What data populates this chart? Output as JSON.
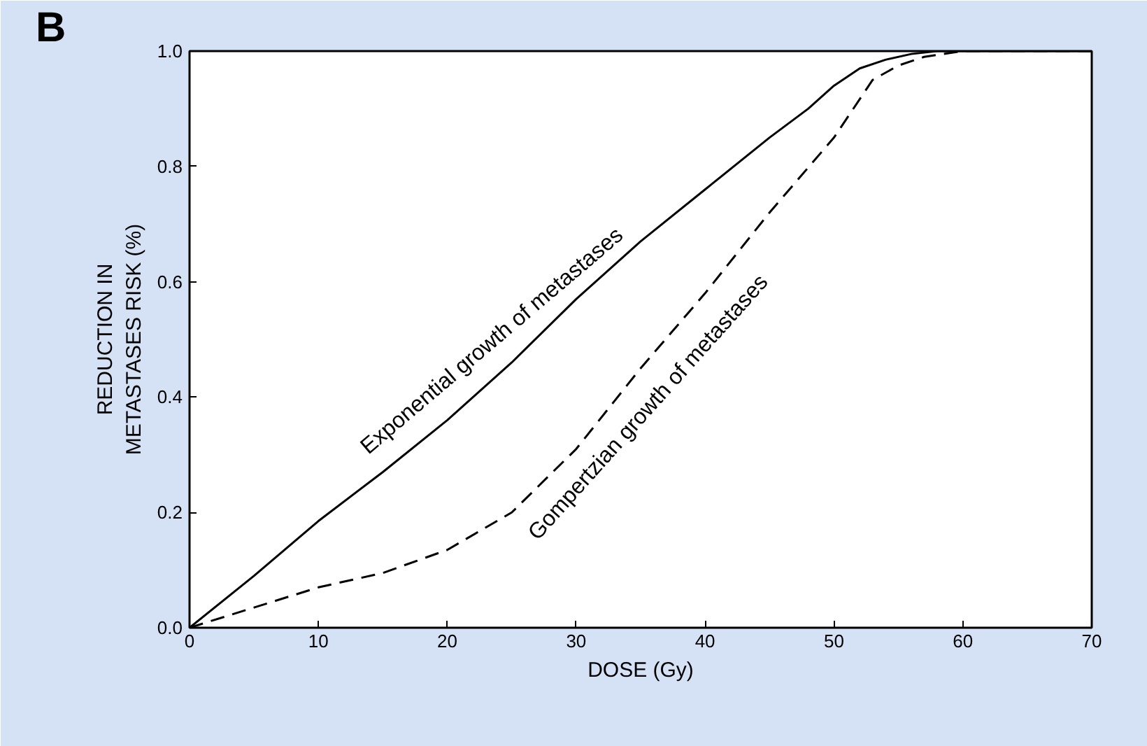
{
  "chart_data": {
    "type": "line",
    "xlabel": "DOSE (Gy)",
    "ylabel": "REDUCTION IN\nMETASTASES RISK (%)",
    "annotations": [
      "B"
    ],
    "xlim": [
      0,
      70
    ],
    "ylim": [
      0,
      1.0
    ],
    "xticks": [
      0,
      10,
      20,
      30,
      40,
      50,
      60,
      70
    ],
    "yticks": [
      {
        "value": 0,
        "label": "0.0"
      },
      {
        "value": 0.2,
        "label": "0.2"
      },
      {
        "value": 0.4,
        "label": "0.4"
      },
      {
        "value": 0.6,
        "label": "0.6"
      },
      {
        "value": 0.8,
        "label": "0.8"
      },
      {
        "value": 1.0,
        "label": "1.0"
      }
    ],
    "grid": false,
    "series": [
      {
        "name": "Exponential growth of metastases",
        "color": "#000000",
        "line_style": "solid",
        "x": [
          0,
          5,
          10,
          15,
          20,
          25,
          30,
          35,
          40,
          45,
          48,
          50,
          52,
          54,
          56,
          58,
          60,
          65,
          70
        ],
        "values": [
          0,
          0.09,
          0.185,
          0.27,
          0.36,
          0.46,
          0.57,
          0.67,
          0.76,
          0.85,
          0.9,
          0.94,
          0.97,
          0.985,
          0.995,
          1.0,
          1.0,
          1.0,
          1.0
        ]
      },
      {
        "name": "Gompertzian growth of metastases",
        "color": "#000000",
        "line_style": "dashed",
        "x": [
          0,
          5,
          10,
          15,
          20,
          25,
          30,
          35,
          40,
          45,
          50,
          53,
          55,
          57,
          60,
          65,
          70
        ],
        "values": [
          0,
          0.035,
          0.07,
          0.095,
          0.135,
          0.2,
          0.31,
          0.45,
          0.58,
          0.72,
          0.85,
          0.95,
          0.975,
          0.99,
          1.0,
          1.0,
          1.0
        ]
      }
    ]
  }
}
